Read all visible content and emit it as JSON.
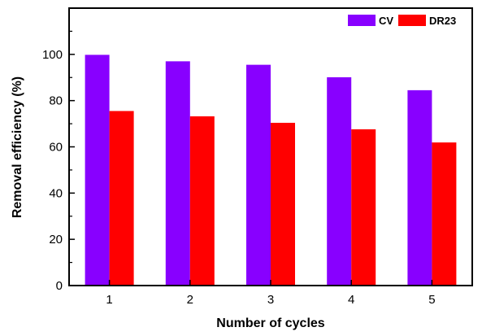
{
  "chart_data": {
    "type": "bar",
    "categories": [
      "1",
      "2",
      "3",
      "4",
      "5"
    ],
    "series": [
      {
        "name": "CV",
        "values": [
          99.8,
          97.0,
          95.5,
          90.1,
          84.5
        ],
        "color": "#8800ff"
      },
      {
        "name": "DR23",
        "values": [
          75.5,
          73.2,
          70.4,
          67.6,
          61.9
        ],
        "color": "#ff0000"
      }
    ],
    "xlabel": "Number of cycles",
    "ylabel": "Removal efficiency (%)",
    "ylim": [
      0,
      120
    ],
    "yticks": [
      0,
      20,
      40,
      60,
      80,
      100
    ],
    "grid": false,
    "legend": "top-right"
  }
}
